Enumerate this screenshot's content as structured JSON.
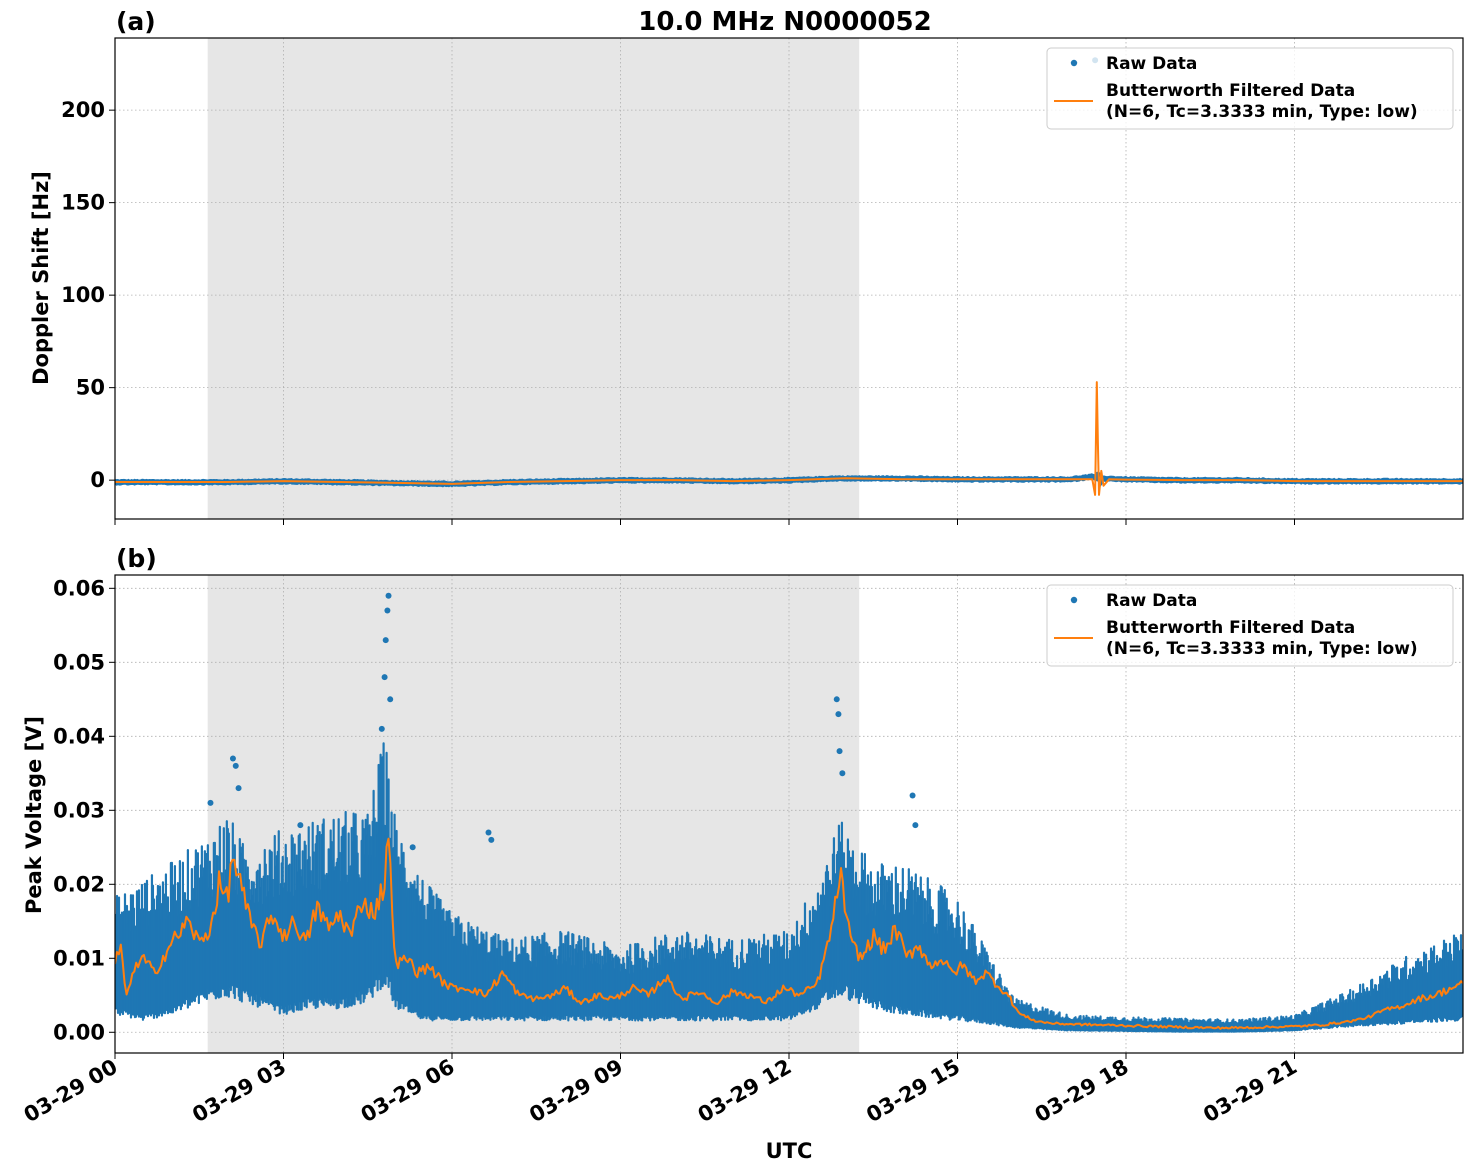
{
  "title": "10.0 MHz N0000052",
  "xlabel": "UTC",
  "x_tick_labels": [
    "03-29 00",
    "03-29 03",
    "03-29 06",
    "03-29 09",
    "03-29 12",
    "03-29 15",
    "03-29 18",
    "03-29 21"
  ],
  "colors": {
    "raw": "#1f77b4",
    "filtered": "#ff7f0e",
    "shade": "#e6e6e6",
    "grid": "#b0b0b0"
  },
  "legend": {
    "raw_label": "Raw Data",
    "filtered_line1": "Butterworth Filtered Data",
    "filtered_line2": "(N=6, Tc=3.3333 min, Type: low)"
  },
  "chart_data": [
    {
      "type": "scatter",
      "panel_label": "(a)",
      "ylabel": "Doppler Shift [Hz]",
      "x_unit": "hours UTC on 03-29",
      "xlim": [
        0,
        24
      ],
      "ylim": [
        -21,
        239
      ],
      "yticks": [
        0,
        50,
        100,
        150,
        200
      ],
      "grid": true,
      "legend_position": "top-right",
      "shaded_x_range": [
        1.65,
        13.25
      ],
      "series": [
        {
          "name": "Raw Data",
          "x": [
            0,
            1,
            2,
            3,
            4,
            5,
            6,
            7,
            8,
            9,
            10,
            11,
            12,
            12.8,
            13.5,
            14,
            15,
            16,
            17,
            17.4,
            17.45,
            17.5,
            17.55,
            17.6,
            18,
            19,
            20,
            21,
            22,
            23,
            24
          ],
          "y": [
            -1,
            -1,
            -1,
            -0.5,
            -1,
            -1.5,
            -2,
            -1,
            -0.5,
            0,
            0,
            -0.5,
            0,
            1,
            1,
            1,
            0.5,
            0.5,
            0.5,
            2,
            227,
            3,
            -2,
            1,
            0.5,
            0,
            0,
            -0.5,
            -0.5,
            -0.5,
            -0.5
          ]
        },
        {
          "name": "Butterworth Filtered Data (N=6, Tc=3.3333 min, Type: low)",
          "x": [
            0,
            1,
            2,
            3,
            4,
            5,
            6,
            7,
            8,
            9,
            10,
            11,
            12,
            13,
            14,
            15,
            16,
            17,
            17.4,
            17.45,
            17.48,
            17.5,
            17.52,
            17.56,
            17.6,
            17.7,
            18,
            19,
            20,
            21,
            22,
            23,
            24
          ],
          "y": [
            -1,
            -1,
            -1,
            -0.5,
            -1,
            -1.5,
            -2,
            -1,
            -0.5,
            0,
            0,
            -0.5,
            0,
            1,
            0.5,
            0.5,
            0.5,
            0.5,
            0.5,
            -8,
            53,
            20,
            -8,
            5,
            -3,
            0.5,
            0.3,
            0,
            0,
            -0.5,
            -0.5,
            -0.5,
            -0.5
          ]
        }
      ]
    },
    {
      "type": "scatter",
      "panel_label": "(b)",
      "ylabel": "Peak Voltage [V]",
      "x_unit": "hours UTC on 03-29",
      "xlim": [
        0,
        24
      ],
      "ylim": [
        -0.0028,
        0.0618
      ],
      "yticks": [
        0.0,
        0.01,
        0.02,
        0.03,
        0.04,
        0.05,
        0.06
      ],
      "ytick_labels": [
        "0.00",
        "0.01",
        "0.02",
        "0.03",
        "0.04",
        "0.05",
        "0.06"
      ],
      "grid": true,
      "legend_position": "top-right",
      "shaded_x_range": [
        1.65,
        13.25
      ],
      "series": [
        {
          "name": "Raw Data",
          "band_x": [
            0,
            0.5,
            1,
            1.6,
            2,
            2.3,
            3,
            3.5,
            4,
            4.5,
            4.8,
            5,
            5.5,
            6,
            7,
            8,
            9,
            10,
            11,
            12,
            12.5,
            12.9,
            13.5,
            14,
            15,
            15.5,
            16,
            16.5,
            17,
            18,
            19,
            20,
            21,
            22,
            23,
            24
          ],
          "band_lo": [
            0.003,
            0.002,
            0.003,
            0.005,
            0.006,
            0.005,
            0.003,
            0.004,
            0.004,
            0.005,
            0.008,
            0.004,
            0.002,
            0.002,
            0.002,
            0.002,
            0.002,
            0.002,
            0.002,
            0.002,
            0.004,
            0.006,
            0.004,
            0.003,
            0.002,
            0.0015,
            0.0008,
            0.0005,
            0.0003,
            0.0002,
            0.0001,
            0.0001,
            0.0003,
            0.001,
            0.0015,
            0.002
          ],
          "band_hi": [
            0.016,
            0.018,
            0.02,
            0.023,
            0.026,
            0.022,
            0.024,
            0.025,
            0.026,
            0.026,
            0.035,
            0.025,
            0.018,
            0.014,
            0.011,
            0.012,
            0.01,
            0.012,
            0.011,
            0.012,
            0.018,
            0.025,
            0.02,
            0.02,
            0.016,
            0.01,
            0.004,
            0.003,
            0.002,
            0.0018,
            0.0016,
            0.0015,
            0.002,
            0.005,
            0.009,
            0.012
          ],
          "outliers_x": [
            1.7,
            2.1,
            2.15,
            2.2,
            3.3,
            4.75,
            4.8,
            4.82,
            4.85,
            4.87,
            4.9,
            5.3,
            6.65,
            6.7,
            12.85,
            12.88,
            12.9,
            12.95,
            14.2,
            14.25
          ],
          "outliers_y": [
            0.031,
            0.037,
            0.036,
            0.033,
            0.028,
            0.041,
            0.048,
            0.053,
            0.057,
            0.059,
            0.045,
            0.025,
            0.027,
            0.026,
            0.045,
            0.043,
            0.038,
            0.035,
            0.032,
            0.028
          ]
        },
        {
          "name": "Butterworth Filtered Data (N=6, Tc=3.3333 min, Type: low)",
          "x": [
            0,
            0.1,
            0.2,
            0.3,
            0.5,
            0.7,
            1,
            1.3,
            1.5,
            1.7,
            1.85,
            2,
            2.1,
            2.2,
            2.4,
            2.6,
            2.8,
            3,
            3.2,
            3.4,
            3.6,
            3.8,
            4,
            4.2,
            4.4,
            4.6,
            4.8,
            4.85,
            5,
            5.2,
            5.4,
            5.6,
            5.8,
            6,
            6.3,
            6.6,
            6.9,
            7.2,
            7.5,
            7.8,
            8,
            8.3,
            8.6,
            8.9,
            9.2,
            9.5,
            9.8,
            10.1,
            10.4,
            10.7,
            11,
            11.3,
            11.6,
            11.9,
            12.2,
            12.5,
            12.7,
            12.85,
            12.9,
            13.1,
            13.3,
            13.5,
            13.7,
            13.9,
            14.1,
            14.3,
            14.5,
            14.7,
            14.9,
            15.1,
            15.3,
            15.5,
            15.7,
            15.9,
            16.1,
            16.4,
            16.7,
            17,
            17.5,
            18,
            18.5,
            19,
            19.5,
            20,
            20.5,
            21,
            21.5,
            22,
            22.3,
            22.6,
            22.9,
            23.2,
            23.5,
            23.8,
            24
          ],
          "y": [
            0.009,
            0.012,
            0.0045,
            0.008,
            0.01,
            0.008,
            0.012,
            0.015,
            0.012,
            0.014,
            0.02,
            0.018,
            0.024,
            0.021,
            0.015,
            0.012,
            0.016,
            0.013,
            0.015,
            0.012,
            0.017,
            0.014,
            0.016,
            0.013,
            0.018,
            0.016,
            0.02,
            0.028,
            0.009,
            0.01,
            0.008,
            0.009,
            0.007,
            0.006,
            0.006,
            0.005,
            0.008,
            0.005,
            0.0045,
            0.005,
            0.006,
            0.004,
            0.005,
            0.0045,
            0.006,
            0.005,
            0.0075,
            0.0045,
            0.0055,
            0.004,
            0.0055,
            0.005,
            0.004,
            0.006,
            0.005,
            0.0065,
            0.012,
            0.018,
            0.022,
            0.012,
            0.01,
            0.013,
            0.011,
            0.014,
            0.01,
            0.012,
            0.009,
            0.01,
            0.008,
            0.009,
            0.007,
            0.008,
            0.0065,
            0.005,
            0.0025,
            0.0015,
            0.0012,
            0.0011,
            0.001,
            0.0009,
            0.0008,
            0.0007,
            0.0006,
            0.0006,
            0.0007,
            0.0008,
            0.001,
            0.0015,
            0.002,
            0.003,
            0.0035,
            0.0045,
            0.005,
            0.006,
            0.0065
          ]
        }
      ]
    }
  ]
}
